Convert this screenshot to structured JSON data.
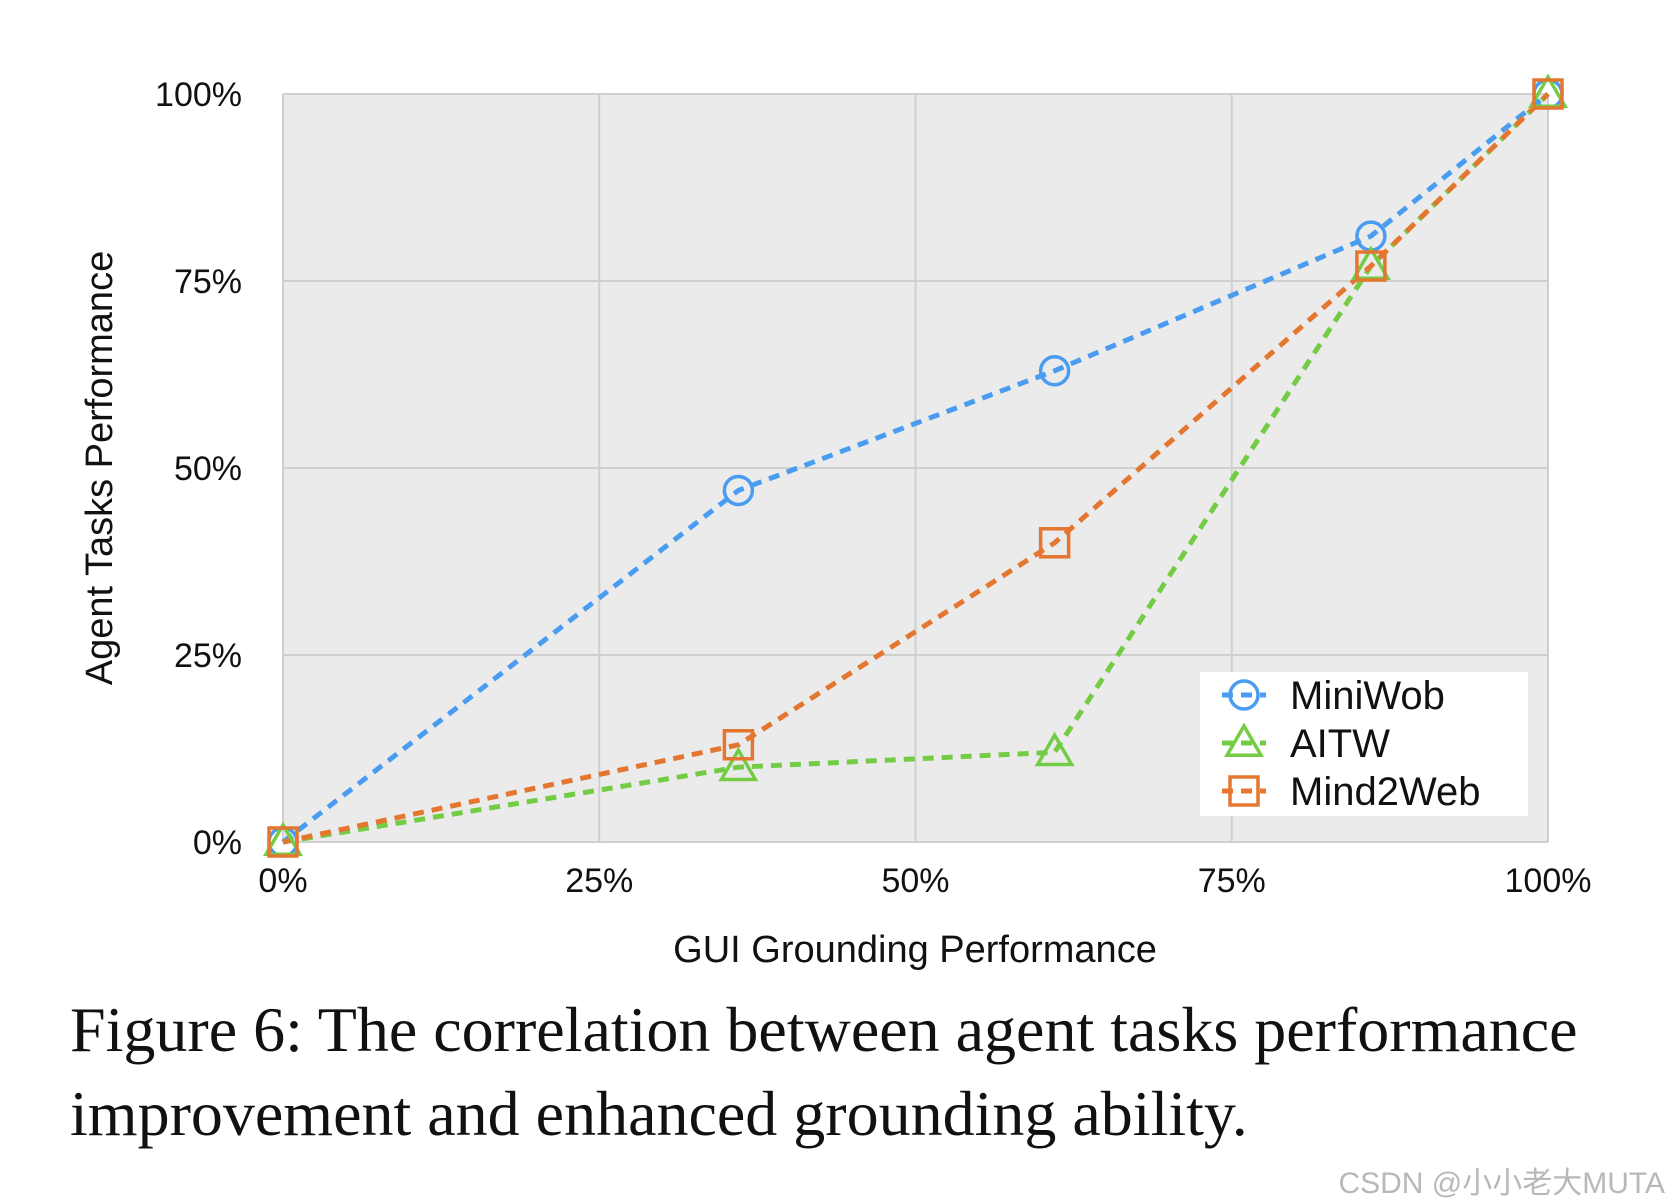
{
  "chart_data": {
    "type": "line",
    "xlabel": "GUI Grounding Performance",
    "ylabel": "Agent Tasks Performance",
    "xlim": [
      0,
      100
    ],
    "ylim": [
      0,
      100
    ],
    "x_ticks": [
      "0%",
      "25%",
      "50%",
      "75%",
      "100%"
    ],
    "y_ticks": [
      "0%",
      "25%",
      "50%",
      "75%",
      "100%"
    ],
    "grid": true,
    "legend_position": "bottom-right",
    "series": [
      {
        "name": "MiniWob",
        "marker": "circle",
        "color": "#4a9cf0",
        "points": [
          [
            0,
            0
          ],
          [
            36,
            47
          ],
          [
            61,
            63
          ],
          [
            86,
            81
          ],
          [
            100,
            100
          ]
        ]
      },
      {
        "name": "AITW",
        "marker": "triangle",
        "color": "#74cc45",
        "points": [
          [
            0,
            0
          ],
          [
            36,
            10
          ],
          [
            61,
            12
          ],
          [
            86,
            77
          ],
          [
            100,
            100
          ]
        ]
      },
      {
        "name": "Mind2Web",
        "marker": "square",
        "color": "#e4762f",
        "points": [
          [
            0,
            0
          ],
          [
            36,
            13
          ],
          [
            61,
            40
          ],
          [
            86,
            77
          ],
          [
            100,
            100
          ]
        ]
      }
    ]
  },
  "caption": "Figure 6: The correlation between agent tasks performance improvement and enhanced grounding ability.",
  "watermark": "CSDN @小小老大MUTA"
}
